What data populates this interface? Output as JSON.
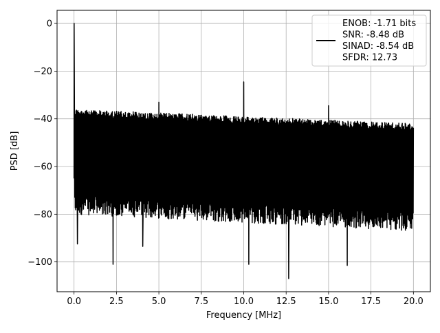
{
  "chart_data": {
    "type": "line",
    "xlabel": "Frequency [MHz]",
    "ylabel": "PSD [dB]",
    "xlim": [
      -1.0,
      21.0
    ],
    "ylim": [
      -112.5,
      5.5
    ],
    "xticks": [
      0.0,
      2.5,
      5.0,
      7.5,
      10.0,
      12.5,
      15.0,
      17.5,
      20.0
    ],
    "xtick_labels": [
      "0.0",
      "2.5",
      "5.0",
      "7.5",
      "10.0",
      "12.5",
      "15.0",
      "17.5",
      "20.0"
    ],
    "yticks": [
      0,
      -20,
      -40,
      -60,
      -80,
      -100
    ],
    "ytick_labels": [
      "0",
      "−20",
      "−40",
      "−60",
      "−80",
      "−100"
    ],
    "grid": true,
    "legend_placement": "upper right",
    "series": [
      {
        "name": "ENOB: -1.71 bits\nSNR: -8.48 dB\nSINAD: -8.54 dB\nSFDR: 12.73",
        "color": "#000000",
        "noise_floor_upper_db": [
          -36,
          -42
        ],
        "noise_floor_lower_db": [
          -78,
          -85
        ],
        "spurs": [
          {
            "x": 0.0,
            "y": 0.0
          },
          {
            "x": 5.0,
            "y": -33.0
          },
          {
            "x": 10.0,
            "y": -24.5
          },
          {
            "x": 15.0,
            "y": -34.5
          }
        ],
        "deep_nulls": [
          {
            "x": 0.2,
            "y": -92.5
          },
          {
            "x": 2.3,
            "y": -101.0
          },
          {
            "x": 4.05,
            "y": -93.5
          },
          {
            "x": 10.3,
            "y": -101.0
          },
          {
            "x": 12.65,
            "y": -107.0
          },
          {
            "x": 16.1,
            "y": -101.5
          }
        ]
      }
    ],
    "legend_lines": [
      "ENOB: -1.71 bits",
      "SNR: -8.48 dB",
      "SINAD: -8.54 dB",
      "SFDR: 12.73"
    ]
  }
}
